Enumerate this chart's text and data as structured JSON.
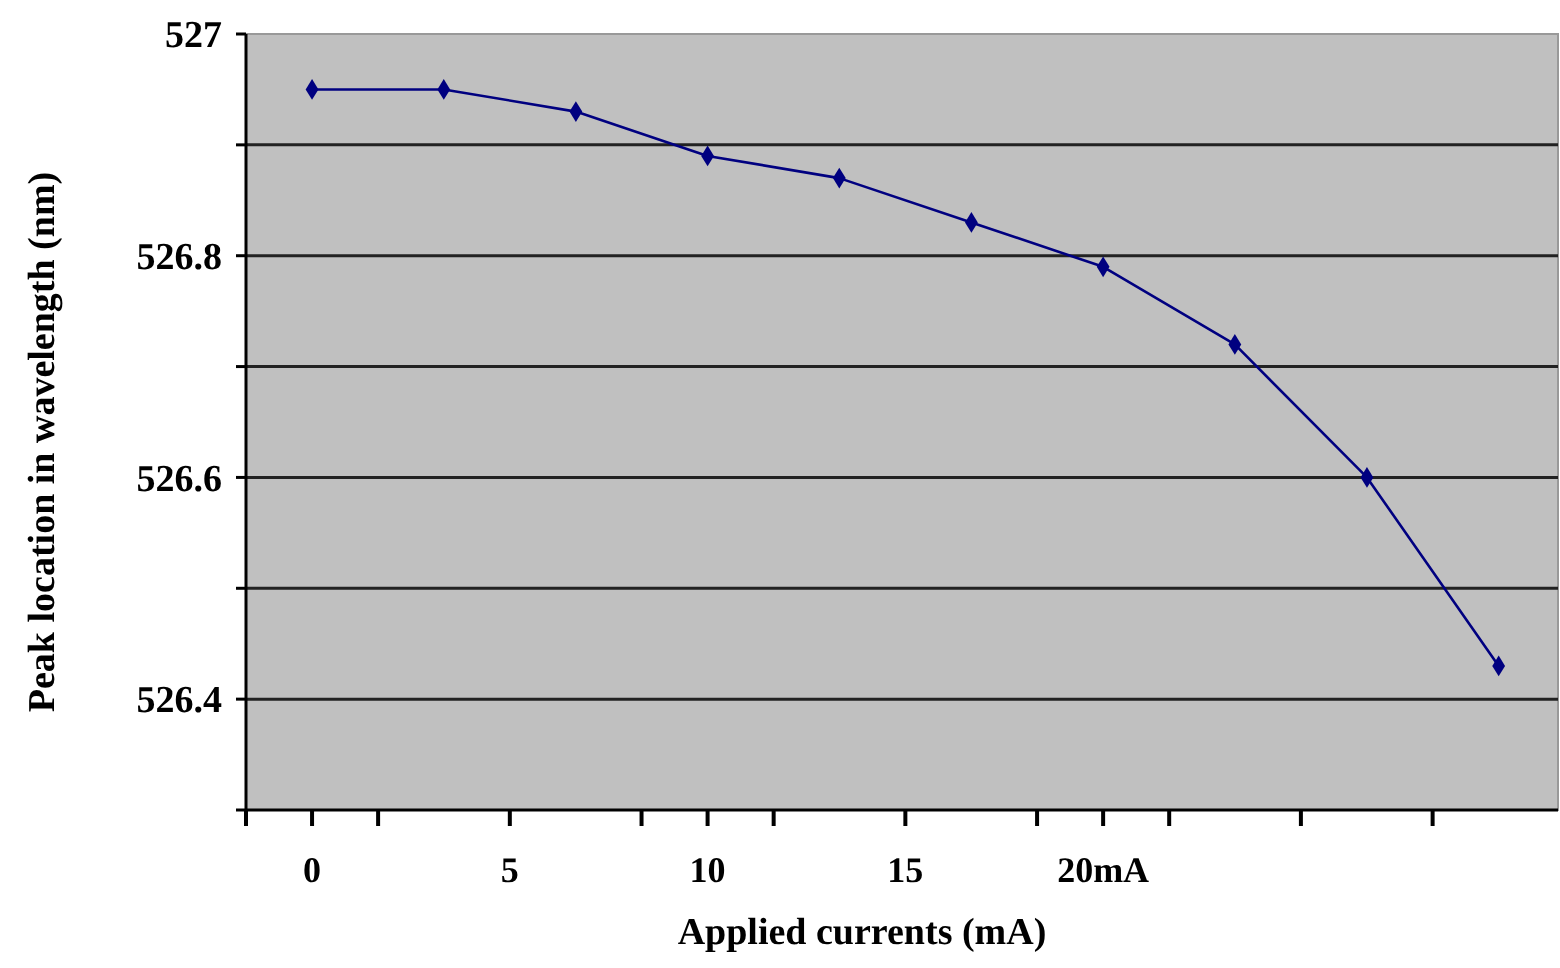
{
  "chart_data": {
    "type": "line",
    "xlabel": "Applied currents (mA)",
    "ylabel": "Peak location in wavelength (nm)",
    "x": [
      0,
      3.33,
      6.67,
      10,
      13.33,
      16.67,
      20,
      23.33,
      26.67,
      30
    ],
    "series": [
      {
        "color": "#000080",
        "values": [
          526.95,
          526.95,
          526.93,
          526.89,
          526.87,
          526.83,
          526.79,
          526.72,
          526.6,
          526.43
        ]
      }
    ],
    "xlim": [
      -1.67,
      31.5
    ],
    "xticks": [
      {
        "value": -1.67,
        "label": null
      },
      0,
      {
        "value": 1.67,
        "label": null
      },
      {
        "value": 5,
        "label": "5"
      },
      {
        "value": 8.33,
        "label": null
      },
      10,
      {
        "value": 11.67,
        "label": null
      },
      15,
      {
        "value": 18.33,
        "label": null
      },
      {
        "value": 20,
        "label": "20mA"
      },
      {
        "value": 21.67,
        "label": null
      },
      {
        "value": 25,
        "label": null
      },
      {
        "value": 28.33,
        "label": null
      }
    ],
    "ylim": [
      526.3,
      527
    ],
    "yticks": [
      {
        "value": 526.3,
        "label": null
      },
      526.4,
      {
        "value": 526.5,
        "label": null
      },
      526.6,
      {
        "value": 526.7,
        "label": null
      },
      526.8,
      {
        "value": 526.9,
        "label": null
      },
      527
    ],
    "grid": "y",
    "marker": "diamond",
    "line_style": "solid"
  }
}
